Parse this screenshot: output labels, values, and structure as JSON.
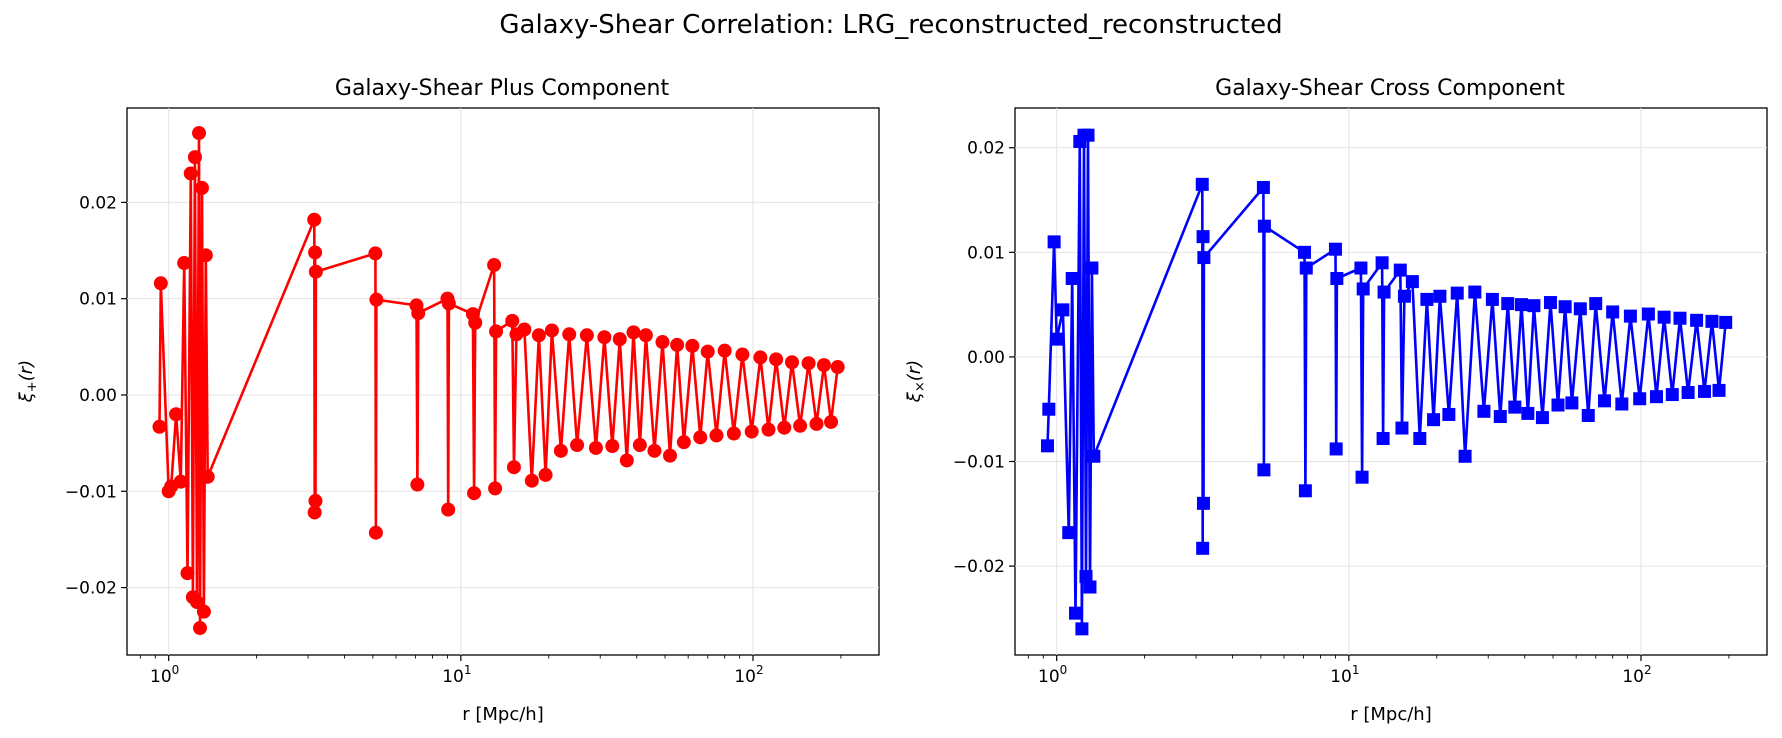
{
  "figure": {
    "title": "Galaxy-Shear Correlation: LRG_reconstructed_reconstructed"
  },
  "colors": {
    "plus": "#ff0000",
    "cross": "#0000ff",
    "grid": "#e4e4e4",
    "axes": "#000000"
  },
  "chart_data": [
    {
      "type": "line",
      "title": "Galaxy-Shear Plus Component",
      "xlabel": "r [Mpc/h]",
      "ylabel": "ξ+(r)",
      "ylabel_main": "ξ",
      "ylabel_sub": "+",
      "ylabel_tail": "(r)",
      "xscale": "log",
      "xlim": [
        0.72,
        270
      ],
      "ylim": [
        -0.027,
        0.0298
      ],
      "xticks": [
        {
          "value": 1,
          "base": "10",
          "exp": "0"
        },
        {
          "value": 10,
          "base": "10",
          "exp": "1"
        },
        {
          "value": 100,
          "base": "10",
          "exp": "2"
        }
      ],
      "yticks": [
        {
          "value": -0.02,
          "label": "−0.02"
        },
        {
          "value": -0.01,
          "label": "−0.01"
        },
        {
          "value": 0.0,
          "label": "0.00"
        },
        {
          "value": 0.01,
          "label": "0.01"
        },
        {
          "value": 0.02,
          "label": "0.02"
        }
      ],
      "grid": true,
      "marker": "circle",
      "series": [
        {
          "color": "#ff0000",
          "x": [
            0.93,
            0.94,
            1.0,
            1.02,
            1.06,
            1.1,
            1.13,
            1.16,
            1.19,
            1.21,
            1.23,
            1.25,
            1.27,
            1.28,
            1.3,
            1.32,
            1.34,
            1.36,
            3.15,
            3.16,
            3.17,
            3.18,
            3.19,
            5.1,
            5.12,
            5.14,
            7.05,
            7.1,
            7.15,
            9.0,
            9.05,
            9.1,
            11.0,
            11.1,
            11.2,
            13.0,
            13.1,
            13.2,
            15.0,
            15.2,
            15.5,
            16.5,
            17.5,
            18.5,
            19.5,
            20.5,
            22,
            23.5,
            25,
            27,
            29,
            31,
            33,
            35,
            37,
            39,
            41,
            43,
            46,
            49,
            52,
            55,
            58,
            62,
            66,
            70,
            75,
            80,
            86,
            92,
            99,
            106,
            113,
            120,
            128,
            136,
            145,
            155,
            165,
            175,
            185,
            195
          ],
          "y": [
            -0.0033,
            0.0116,
            -0.01,
            -0.0095,
            -0.002,
            -0.009,
            0.0137,
            -0.0185,
            0.023,
            -0.021,
            0.0247,
            -0.0215,
            0.0272,
            -0.0242,
            0.0215,
            -0.0225,
            0.0145,
            -0.0085,
            0.0182,
            -0.0122,
            0.0148,
            -0.011,
            0.0128,
            0.0147,
            -0.0143,
            0.0099,
            0.0093,
            -0.0093,
            0.0085,
            0.01,
            -0.0119,
            0.0095,
            0.0084,
            -0.0102,
            0.0075,
            0.0135,
            -0.0097,
            0.0066,
            0.0077,
            -0.0075,
            0.0063,
            0.0068,
            -0.0089,
            0.0062,
            -0.0083,
            0.0067,
            -0.0058,
            0.0063,
            -0.0052,
            0.0062,
            -0.0055,
            0.006,
            -0.0053,
            0.0058,
            -0.0068,
            0.0065,
            -0.0052,
            0.0062,
            -0.0058,
            0.0055,
            -0.0063,
            0.0052,
            -0.0049,
            0.0051,
            -0.0044,
            0.0045,
            -0.0042,
            0.0046,
            -0.004,
            0.0042,
            -0.0038,
            0.0039,
            -0.0036,
            0.0037,
            -0.0034,
            0.0034,
            -0.0032,
            0.0033,
            -0.003,
            0.0031,
            -0.0028,
            0.0029
          ]
        }
      ]
    },
    {
      "type": "line",
      "title": "Galaxy-Shear Cross Component",
      "xlabel": "r [Mpc/h]",
      "ylabel": "ξ×(r)",
      "ylabel_main": "ξ",
      "ylabel_sub": "×",
      "ylabel_tail": "(r)",
      "xscale": "log",
      "xlim": [
        0.72,
        270
      ],
      "ylim": [
        -0.0285,
        0.0238
      ],
      "xticks": [
        {
          "value": 1,
          "base": "10",
          "exp": "0"
        },
        {
          "value": 10,
          "base": "10",
          "exp": "1"
        },
        {
          "value": 100,
          "base": "10",
          "exp": "2"
        }
      ],
      "yticks": [
        {
          "value": -0.02,
          "label": "−0.02"
        },
        {
          "value": -0.01,
          "label": "−0.01"
        },
        {
          "value": 0.0,
          "label": "0.00"
        },
        {
          "value": 0.01,
          "label": "0.01"
        },
        {
          "value": 0.02,
          "label": "0.02"
        }
      ],
      "grid": true,
      "marker": "square",
      "series": [
        {
          "color": "#0000ff",
          "x": [
            0.93,
            0.94,
            0.98,
            1.0,
            1.05,
            1.1,
            1.13,
            1.16,
            1.2,
            1.22,
            1.24,
            1.26,
            1.28,
            1.3,
            1.32,
            1.34,
            3.15,
            3.16,
            3.17,
            3.18,
            3.19,
            5.1,
            5.12,
            5.14,
            7.05,
            7.1,
            7.15,
            9.0,
            9.05,
            9.1,
            11.0,
            11.1,
            11.2,
            13.0,
            13.1,
            13.2,
            15.0,
            15.2,
            15.5,
            16.5,
            17.5,
            18.5,
            19.5,
            20.5,
            22,
            23.5,
            25,
            27,
            29,
            31,
            33,
            35,
            37,
            39,
            41,
            43,
            46,
            49,
            52,
            55,
            58,
            62,
            66,
            70,
            75,
            80,
            86,
            92,
            99,
            106,
            113,
            120,
            128,
            136,
            145,
            155,
            165,
            175,
            185,
            195
          ],
          "y": [
            -0.0085,
            -0.005,
            0.011,
            0.0017,
            0.0045,
            -0.0168,
            0.0075,
            -0.0245,
            0.0206,
            -0.026,
            0.0212,
            -0.021,
            0.0212,
            -0.022,
            0.0085,
            -0.0095,
            0.0165,
            -0.0183,
            0.0115,
            -0.014,
            0.0095,
            0.0162,
            -0.0108,
            0.0125,
            0.01,
            -0.0128,
            0.0085,
            0.0103,
            -0.0088,
            0.0075,
            0.0085,
            -0.0115,
            0.0065,
            0.009,
            -0.0078,
            0.0062,
            0.0083,
            -0.0068,
            0.0058,
            0.0072,
            -0.0078,
            0.0055,
            -0.006,
            0.0058,
            -0.0055,
            0.0061,
            -0.0095,
            0.0062,
            -0.0052,
            0.0055,
            -0.0057,
            0.0051,
            -0.0048,
            0.005,
            -0.0054,
            0.0049,
            -0.0058,
            0.0052,
            -0.0046,
            0.0048,
            -0.0044,
            0.0046,
            -0.0056,
            0.0051,
            -0.0042,
            0.0043,
            -0.0045,
            0.0039,
            -0.004,
            0.0041,
            -0.0038,
            0.0038,
            -0.0036,
            0.0037,
            -0.0034,
            0.0035,
            -0.0033,
            0.0034,
            -0.0032,
            0.0033
          ]
        }
      ]
    }
  ]
}
